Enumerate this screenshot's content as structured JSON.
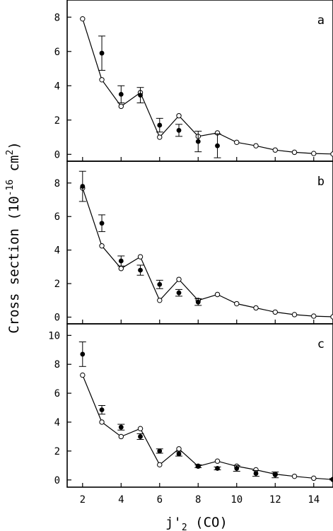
{
  "chart_data": [
    {
      "type": "scatter",
      "panel_label": "a",
      "ylim": [
        -0.4,
        9
      ],
      "yticks": [
        0,
        2,
        4,
        6,
        8
      ],
      "series": [
        {
          "style": "line-open-circles",
          "x": [
            2,
            3,
            4,
            5,
            6,
            7,
            8,
            9,
            10,
            11,
            12,
            13,
            14,
            15
          ],
          "y": [
            7.9,
            4.35,
            2.8,
            3.6,
            1.0,
            2.25,
            1.05,
            1.25,
            0.7,
            0.5,
            0.25,
            0.12,
            0.05,
            0.02
          ]
        },
        {
          "style": "filled-circles-errorbars",
          "x": [
            3,
            4,
            5,
            6,
            7,
            8,
            9
          ],
          "y": [
            5.9,
            3.5,
            3.45,
            1.7,
            1.4,
            0.75,
            0.5
          ],
          "err": [
            1.0,
            0.5,
            0.45,
            0.4,
            0.35,
            0.6,
            0.7
          ]
        }
      ]
    },
    {
      "type": "scatter",
      "panel_label": "b",
      "ylim": [
        -0.4,
        9.3
      ],
      "yticks": [
        0,
        2,
        4,
        6,
        8
      ],
      "series": [
        {
          "style": "line-open-circles",
          "x": [
            2,
            3,
            4,
            5,
            6,
            7,
            8,
            9,
            10,
            11,
            12,
            13,
            14,
            15
          ],
          "y": [
            7.7,
            4.25,
            2.9,
            3.6,
            1.0,
            2.25,
            1.0,
            1.35,
            0.8,
            0.55,
            0.3,
            0.15,
            0.06,
            0.02
          ]
        },
        {
          "style": "filled-circles-errorbars",
          "x": [
            2,
            3,
            4,
            5,
            6,
            7,
            8
          ],
          "y": [
            7.8,
            5.6,
            3.35,
            2.8,
            1.95,
            1.45,
            0.9
          ],
          "err": [
            0.9,
            0.5,
            0.3,
            0.3,
            0.25,
            0.2,
            0.2
          ]
        }
      ]
    },
    {
      "type": "scatter",
      "panel_label": "c",
      "ylim": [
        -0.5,
        10.8
      ],
      "yticks": [
        0,
        2,
        4,
        6,
        8,
        10
      ],
      "series": [
        {
          "style": "line-open-circles",
          "x": [
            2,
            3,
            4,
            5,
            6,
            7,
            8,
            9,
            10,
            11,
            12,
            13,
            14,
            15
          ],
          "y": [
            7.25,
            4.0,
            3.0,
            3.55,
            1.05,
            2.15,
            0.95,
            1.3,
            0.95,
            0.7,
            0.4,
            0.25,
            0.12,
            0.03
          ]
        },
        {
          "style": "filled-circles-errorbars",
          "x": [
            2,
            3,
            4,
            5,
            6,
            7,
            8,
            9,
            10,
            11,
            12,
            15
          ],
          "y": [
            8.7,
            4.85,
            3.65,
            3.0,
            2.0,
            1.8,
            0.95,
            0.8,
            0.8,
            0.45,
            0.35,
            0.05
          ],
          "err": [
            0.85,
            0.3,
            0.2,
            0.2,
            0.15,
            0.15,
            0.1,
            0.1,
            0.2,
            0.2,
            0.2,
            0.05
          ]
        }
      ]
    }
  ],
  "axes": {
    "xlim": [
      1.2,
      15.0
    ],
    "xticks": [
      2,
      4,
      6,
      8,
      10,
      12,
      14
    ],
    "xlabel_main": "j'",
    "xlabel_sub": "2",
    "xlabel_tail": " (CO)",
    "ylabel_prefix": "Cross section (10",
    "ylabel_exp": "-16",
    "ylabel_mid": " cm",
    "ylabel_sup2": "2",
    "ylabel_suffix": ")"
  }
}
